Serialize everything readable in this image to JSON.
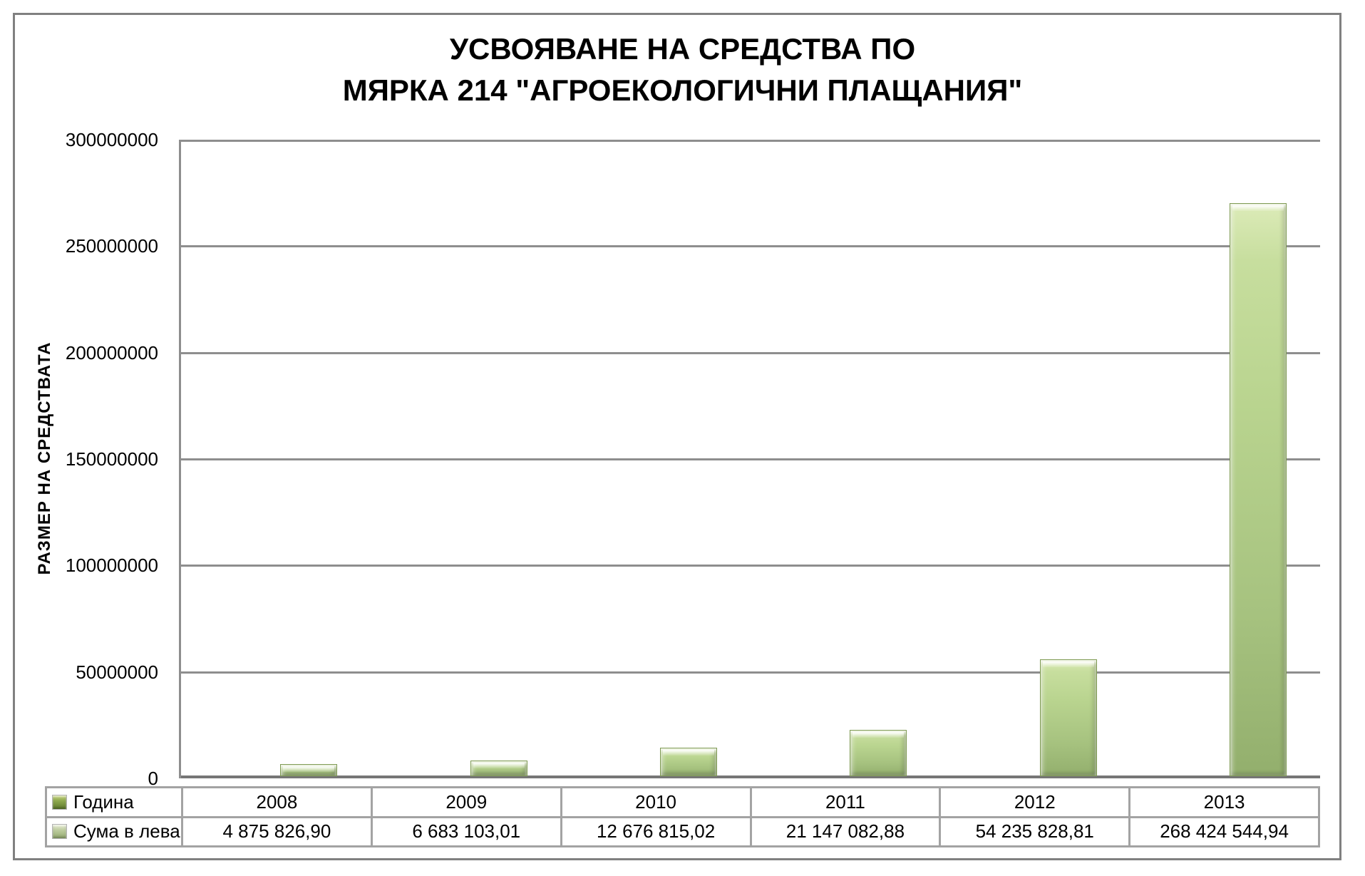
{
  "title": {
    "line1": "УСВОЯВАНЕ НА СРЕДСТВА ПО",
    "line2": "МЯРКА 214 \"АГРОЕКОЛОГИЧНИ ПЛАЩАНИЯ\""
  },
  "y_axis": {
    "title": "РАЗМЕР НА СРЕДСТВАТА",
    "tick_labels": [
      "300000000",
      "250000000",
      "200000000",
      "150000000",
      "100000000",
      "50000000",
      "0"
    ]
  },
  "chart_data": {
    "type": "bar",
    "title": "УСВОЯВАНЕ НА СРЕДСТВА ПО МЯРКА 214 \"АГРОЕКОЛОГИЧНИ ПЛАЩАНИЯ\"",
    "categories": [
      "2008",
      "2009",
      "2010",
      "2011",
      "2012",
      "2013"
    ],
    "series": [
      {
        "name": "Сума в лева",
        "values": [
          4875826.9,
          6683103.01,
          12676815.02,
          21147082.88,
          54235828.81,
          268424544.94
        ]
      }
    ],
    "xlabel": "Година",
    "ylabel": "РАЗМЕР НА СРЕДСТВАТА",
    "ylim": [
      0,
      300000000
    ],
    "major_unit": 50000000,
    "grid": true,
    "legend_position": "table-left"
  },
  "table": {
    "rows": [
      {
        "label": "Година",
        "swatch": "year",
        "cells": [
          "2008",
          "2009",
          "2010",
          "2011",
          "2012",
          "2013"
        ]
      },
      {
        "label": "Сума в лева",
        "swatch": "sum",
        "cells": [
          "4 875 826,90",
          "6 683 103,01",
          "12 676 815,02",
          "21 147 082,88",
          "54 235 828,81",
          "268 424 544,94"
        ]
      }
    ]
  },
  "colors": {
    "bar_top": "#dcebb8",
    "bar_mid": "#b9d48f",
    "bar_bottom": "#93af6d",
    "bar_border": "#7e9a52",
    "gridline": "#8e8e8e",
    "axis": "#767676",
    "table_border": "#a3a3a3",
    "frame_border": "#808080",
    "swatch_year": "#5e7a2c",
    "swatch_sum": "#95ab70"
  }
}
